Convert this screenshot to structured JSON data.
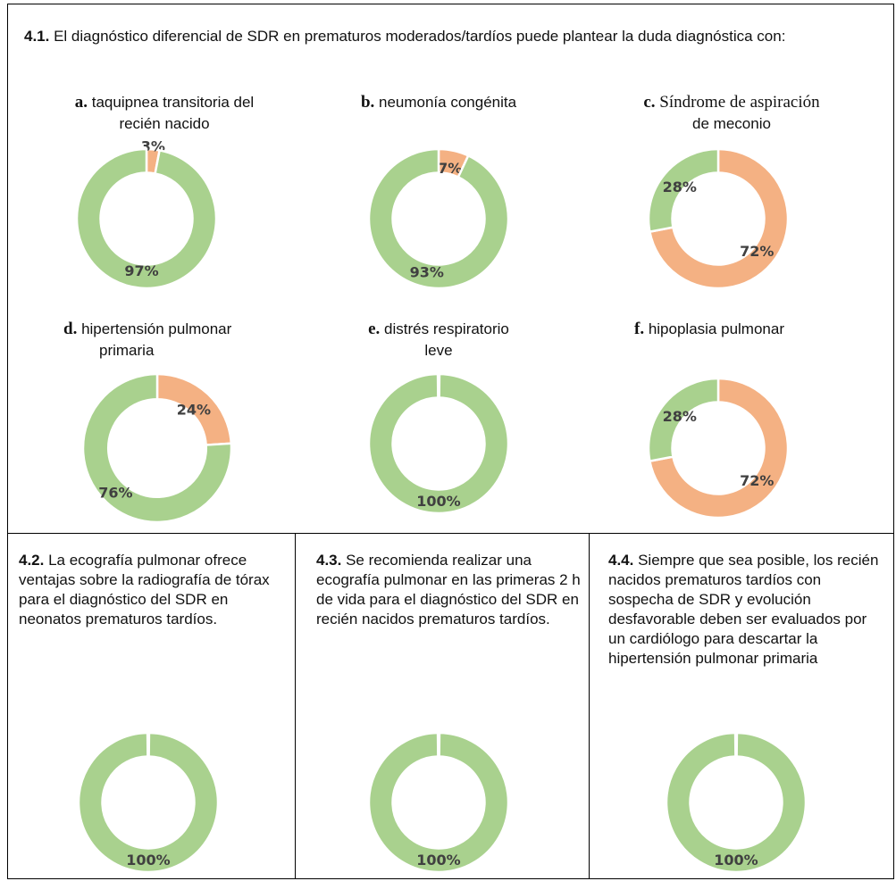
{
  "intro": {
    "number": "4.1.",
    "text": "El diagnóstico diferencial de SDR en prematuros moderados/tardíos puede plantear la duda diagnóstica con:"
  },
  "colors": {
    "accent_orange": "#F4B183",
    "accent_green": "#A9D18E"
  },
  "panels": [
    {
      "letter": "a.",
      "title_line1": "taquipnea transitoria del",
      "title_line2": "recién nacido"
    },
    {
      "letter": "b.",
      "title_line1": "neumonía congénita",
      "title_line2": ""
    },
    {
      "letter": "c.",
      "title_line1": "Síndrome de aspiración",
      "title_line2": "de meconio"
    },
    {
      "letter": "d.",
      "title_line1": "hipertensión pulmonar",
      "title_line2": "primaria"
    },
    {
      "letter": "e.",
      "title_line1": "distrés respiratorio",
      "title_line2": "leve"
    },
    {
      "letter": "f.",
      "title_line1": "hipoplasia pulmonar",
      "title_line2": ""
    }
  ],
  "bottom": [
    {
      "number": "4.2.",
      "text": "La ecografía pulmonar ofrece ventajas sobre la radiografía de tórax para el diagnóstico del SDR en neonatos prematuros tardíos."
    },
    {
      "number": "4.3.",
      "text": "Se recomienda realizar una ecografía pulmonar en las primeras 2 h de vida para el diagnóstico del SDR en recién nacidos prematuros tardíos."
    },
    {
      "number": "4.4.",
      "text": "Siempre que sea posible, los recién nacidos prematuros tardíos con sospecha de SDR y evolución desfavorable deben ser evaluados por un cardiólogo para descartar la hipertensión pulmonar primaria"
    }
  ],
  "chart_data": [
    {
      "type": "pie",
      "title": "a. taquipnea transitoria del recién nacido",
      "values": [
        3,
        97
      ],
      "labels": [
        "3%",
        "97%"
      ],
      "colors": [
        "#F4B183",
        "#A9D18E"
      ]
    },
    {
      "type": "pie",
      "title": "b. neumonía congénita",
      "values": [
        7,
        93
      ],
      "labels": [
        "7%",
        "93%"
      ],
      "colors": [
        "#F4B183",
        "#A9D18E"
      ]
    },
    {
      "type": "pie",
      "title": "c. Síndrome de aspiración de meconio",
      "values": [
        72,
        28
      ],
      "labels": [
        "72%",
        "28%"
      ],
      "colors": [
        "#F4B183",
        "#A9D18E"
      ]
    },
    {
      "type": "pie",
      "title": "d. hipertensión pulmonar primaria",
      "values": [
        24,
        76
      ],
      "labels": [
        "24%",
        "76%"
      ],
      "colors": [
        "#F4B183",
        "#A9D18E"
      ]
    },
    {
      "type": "pie",
      "title": "e. distrés respiratorio leve",
      "values": [
        100
      ],
      "labels": [
        "100%"
      ],
      "colors": [
        "#A9D18E"
      ]
    },
    {
      "type": "pie",
      "title": "f. hipoplasia pulmonar",
      "values": [
        72,
        28
      ],
      "labels": [
        "72%",
        "28%"
      ],
      "colors": [
        "#F4B183",
        "#A9D18E"
      ]
    },
    {
      "type": "pie",
      "title": "4.2.",
      "values": [
        100
      ],
      "labels": [
        "100%"
      ],
      "colors": [
        "#A9D18E"
      ]
    },
    {
      "type": "pie",
      "title": "4.3.",
      "values": [
        100
      ],
      "labels": [
        "100%"
      ],
      "colors": [
        "#A9D18E"
      ]
    },
    {
      "type": "pie",
      "title": "4.4.",
      "values": [
        100
      ],
      "labels": [
        "100%"
      ],
      "colors": [
        "#A9D18E"
      ]
    }
  ]
}
